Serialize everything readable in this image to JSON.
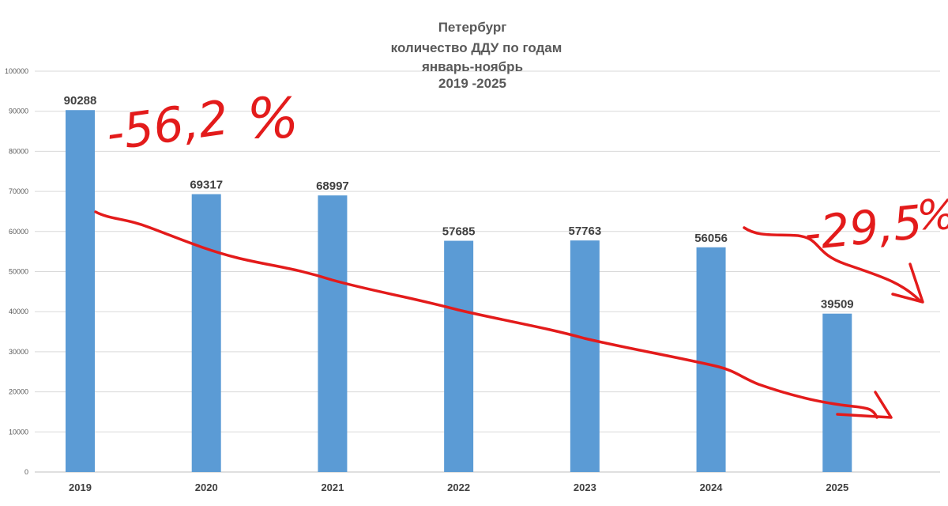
{
  "chart_data": {
    "type": "bar",
    "title_lines": [
      "Петербург",
      "количество ДДУ по годам",
      "январь-ноябрь",
      "2019 -2025"
    ],
    "categories": [
      "2019",
      "2020",
      "2021",
      "2022",
      "2023",
      "2024",
      "2025"
    ],
    "values": [
      90288,
      69317,
      68997,
      57685,
      57763,
      56056,
      39509
    ],
    "data_labels": [
      "90288",
      "69317",
      "68997",
      "57685",
      "57763",
      "56056",
      "39509"
    ],
    "ylim": [
      0,
      100000
    ],
    "yticks": [
      "0",
      "10000",
      "20000",
      "30000",
      "40000",
      "50000",
      "60000",
      "70000",
      "80000",
      "90000",
      "100000"
    ],
    "grid": true,
    "colors": {
      "bar": "#5b9bd5",
      "grid": "#d9d9d9",
      "annotation": "#e31b1b"
    },
    "annotations": [
      {
        "text": "-56,2 %",
        "label": "-56,2",
        "pct": "%"
      },
      {
        "text": "-29,5 %",
        "label": "-29,5",
        "pct": "%"
      }
    ]
  }
}
